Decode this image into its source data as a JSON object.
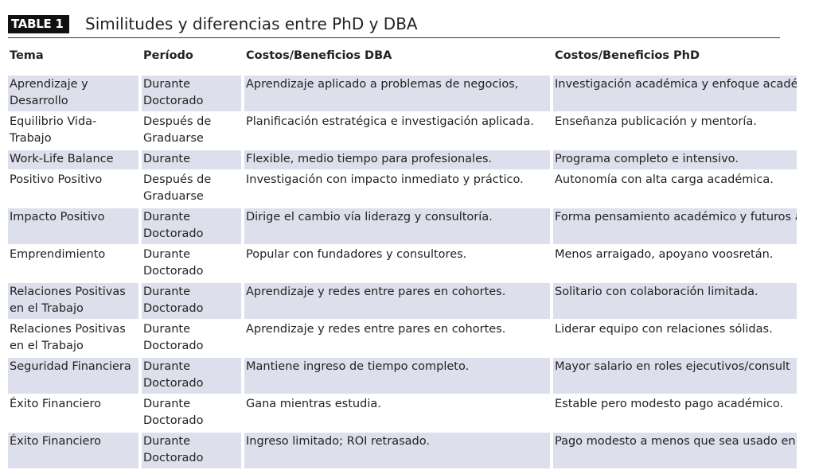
{
  "header": {
    "label": "TABLE 1",
    "title": "Similitudes y diferencias entre PhD y DBA"
  },
  "table": {
    "columns": [
      "Tema",
      "Período",
      "Costos/Beneficios DBA",
      "Costos/Beneficios PhD"
    ],
    "rows": [
      [
        "Aprendizaje y Desarrollo",
        "Durante Doctorado",
        "Aprendizaje aplicado a problemas de negocios,",
        "Investigación académica y enfoque académico."
      ],
      [
        "Equilibrio Vida-Trabajo",
        "Después de Graduarse",
        "Planificación estratégica e investigación aplicada.",
        "Enseñanza publicación y mentoría."
      ],
      [
        "Work-Life Balance",
        "Durante",
        "Flexible, medio tiempo para profesionales.",
        "Programa completo e intensivo."
      ],
      [
        "Positivo Positivo",
        "Después de Graduarse",
        "Investigación con impacto inmediato y práctico.",
        "Autonomía con alta carga académica."
      ],
      [
        "Impacto Positivo",
        "Durante Doctorado",
        "Dirige el cambio vía liderazg y consultoría.",
        "Forma pensamiento académico y futuros académicos."
      ],
      [
        "Emprendimiento",
        "Durante Doctorado",
        "Popular con fundadores y consultores.",
        "Menos arraigado, apoyano voosretán."
      ],
      [
        "Relaciones Positivas en el Trabajo",
        "Durante Doctorado",
        "Aprendizaje y redes entre pares en cohortes.",
        "Solitario con colaboración limitada."
      ],
      [
        "Relaciones Positivas en el Trabajo",
        "Durante Doctorado",
        "Aprendizaje y redes entre pares en cohortes.",
        "Liderar equipo con relaciones sólidas."
      ],
      [
        "Seguridad Financiera",
        "Durante Doctorado",
        "Mantiene ingreso de tiempo completo.",
        "Mayor salario en roles ejecutivos/consult"
      ],
      [
        "Éxito Financiero",
        "Durante Doctorado",
        "Gana mientras estudia.",
        "Estable pero modesto pago académico."
      ],
      [
        "Éxito Financiero",
        "Durante Doctorado",
        "Ingreso limitado; ROI retrasado.",
        "Pago modesto a menos que sea usado en industria."
      ]
    ]
  }
}
